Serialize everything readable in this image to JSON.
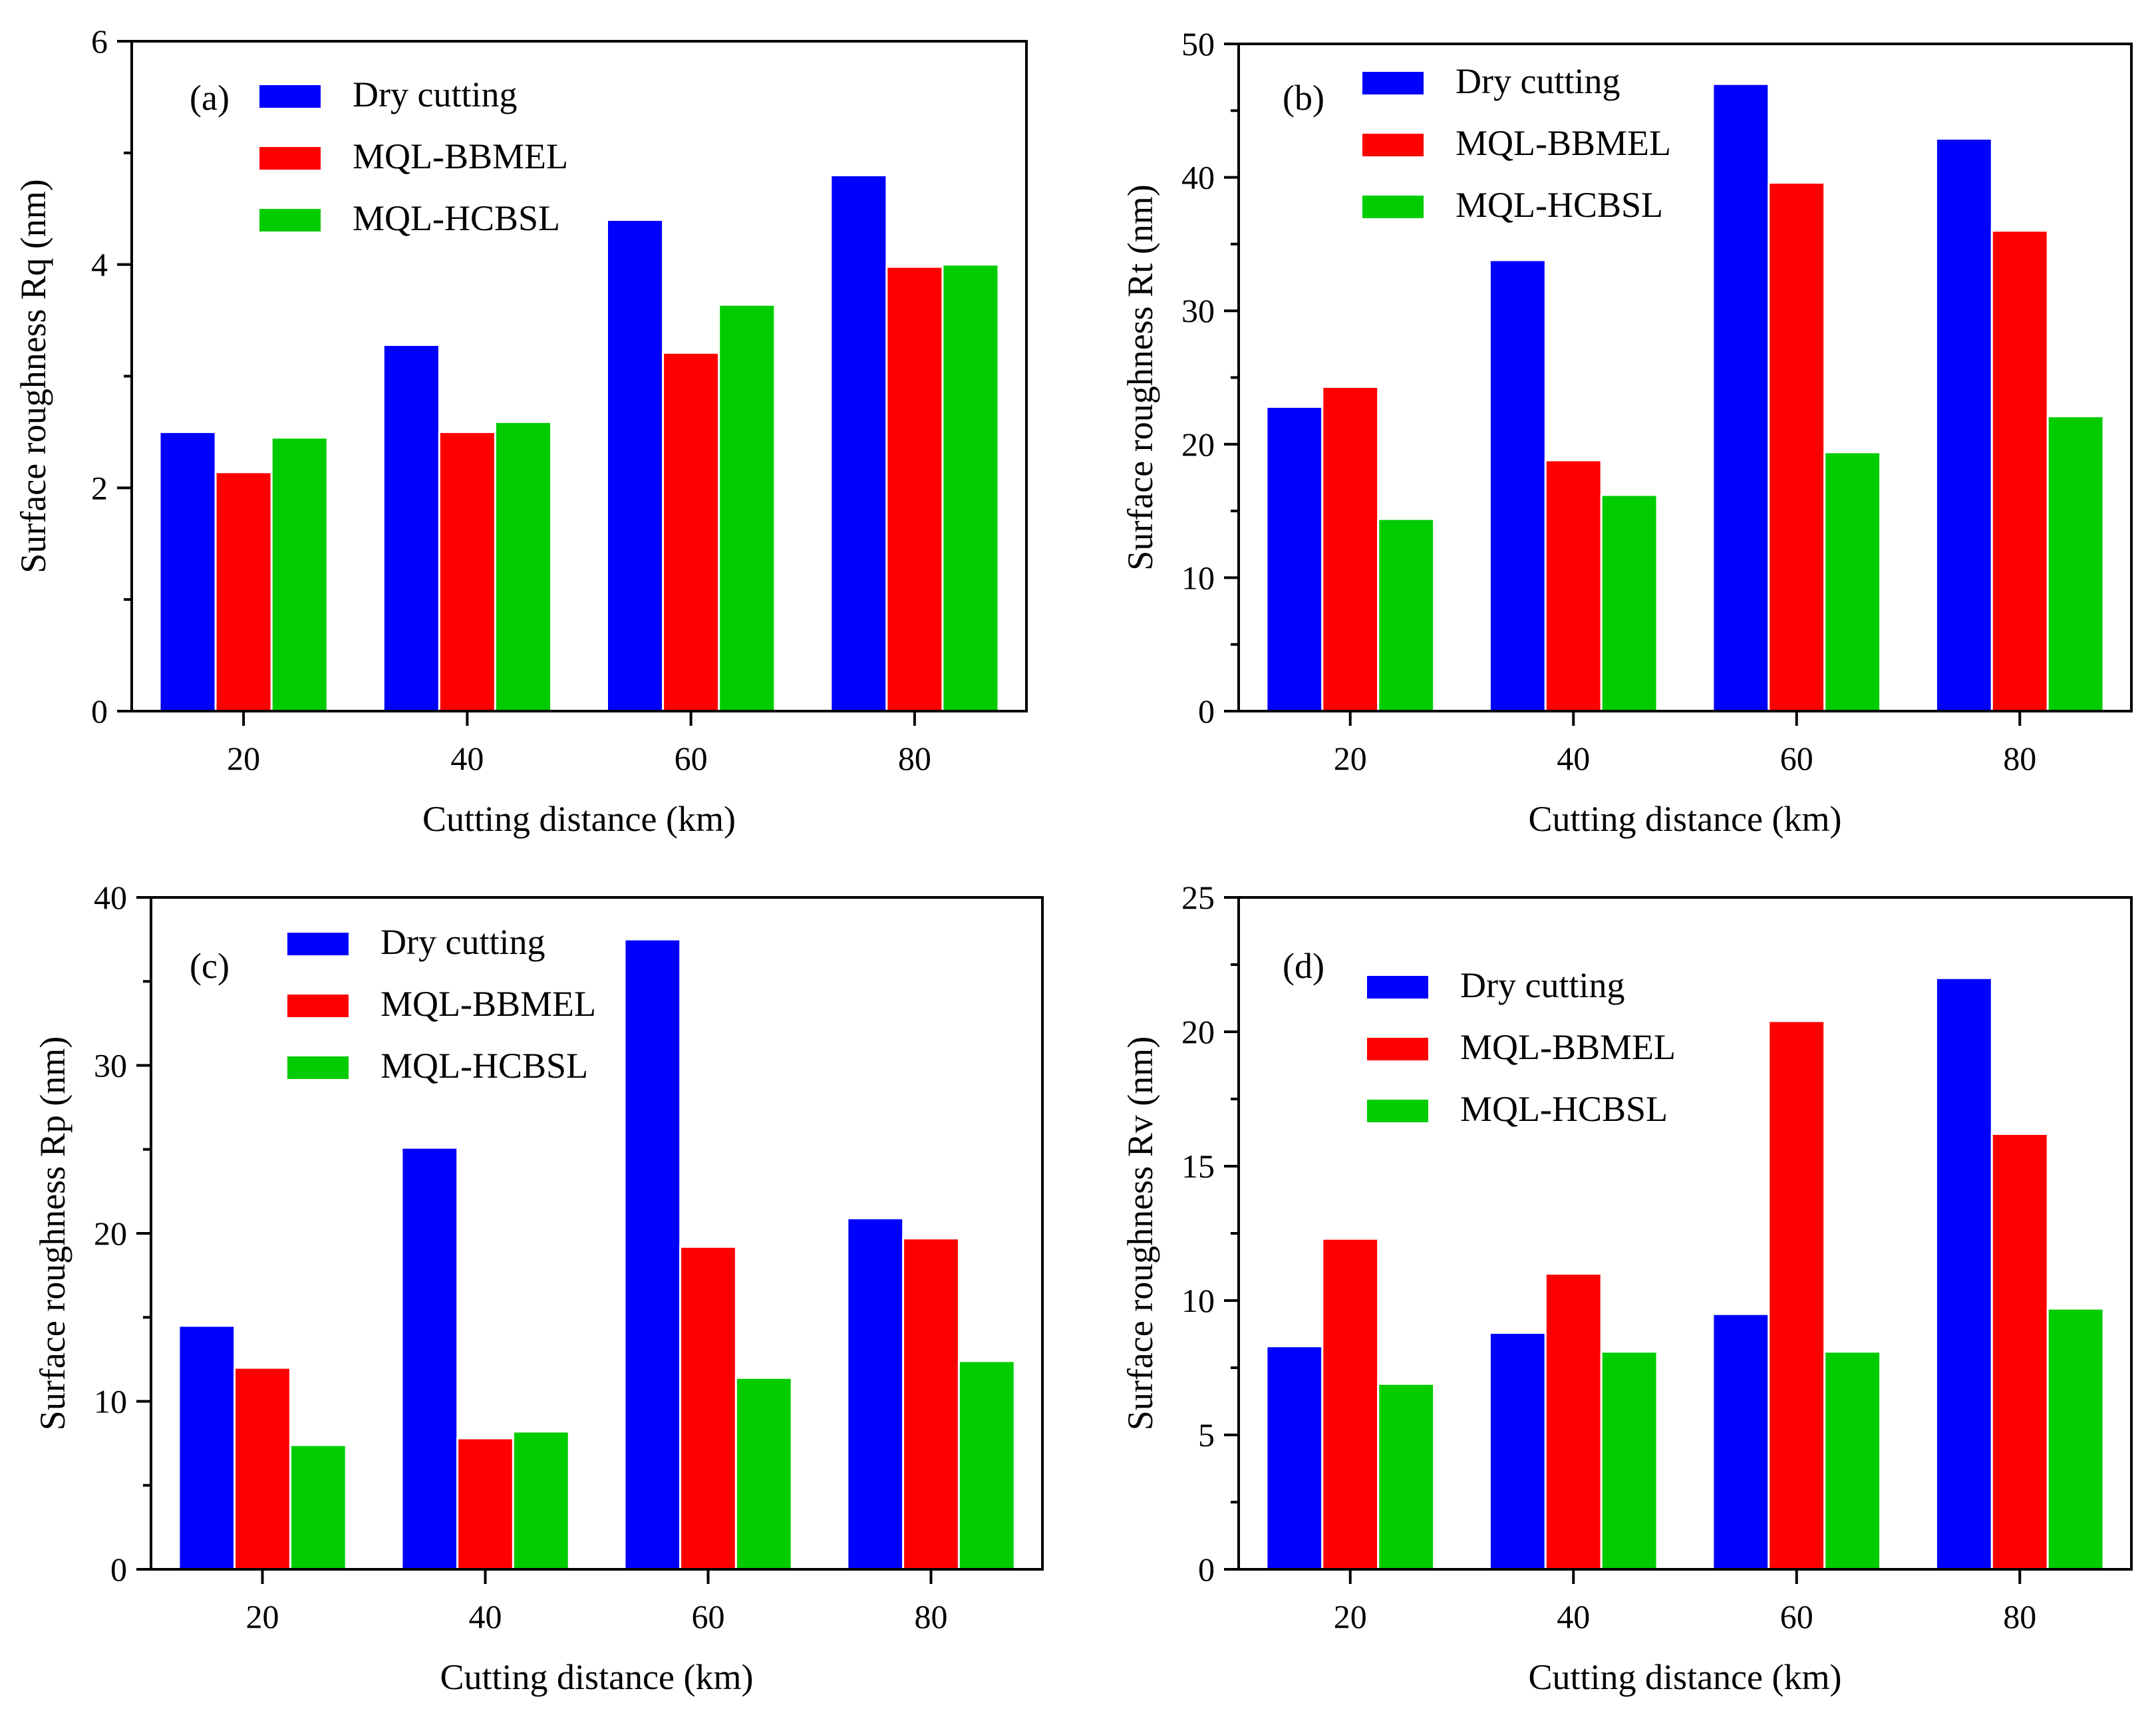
{
  "colors": {
    "dry": "#0000FF",
    "bbmel": "#FF0000",
    "hcbsl": "#00CC00",
    "axis": "#000000"
  },
  "chart_data": [
    {
      "type": "bar",
      "panel": "(a)",
      "categories": [
        "20",
        "40",
        "60",
        "80"
      ],
      "xlabel": "Cutting distance (km)",
      "ylabel": "Surface roughness Rq (nm)",
      "ylim": [
        0,
        6
      ],
      "yticks": [
        "0",
        "2",
        "4",
        "6"
      ],
      "yminor": 1,
      "legend_position": "top-left",
      "series": [
        {
          "name": "Dry cutting",
          "values": [
            2.5,
            3.28,
            4.4,
            4.8
          ]
        },
        {
          "name": "MQL-BBMEL",
          "values": [
            2.14,
            2.5,
            3.21,
            3.98
          ]
        },
        {
          "name": "MQL-HCBSL",
          "values": [
            2.45,
            2.59,
            3.64,
            4.0
          ]
        }
      ]
    },
    {
      "type": "bar",
      "panel": "(b)",
      "categories": [
        "20",
        "40",
        "60",
        "80"
      ],
      "xlabel": "Cutting distance (km)",
      "ylabel": "Surface roughness Rt (nm)",
      "ylim": [
        0,
        50
      ],
      "yticks": [
        "0",
        "10",
        "20",
        "30",
        "40",
        "50"
      ],
      "yminor": 5,
      "legend_position": "top-left",
      "series": [
        {
          "name": "Dry cutting",
          "values": [
            22.8,
            33.8,
            47.0,
            42.9
          ]
        },
        {
          "name": "MQL-BBMEL",
          "values": [
            24.3,
            18.8,
            39.6,
            36.0
          ]
        },
        {
          "name": "MQL-HCBSL",
          "values": [
            14.4,
            16.2,
            19.4,
            22.1
          ]
        }
      ]
    },
    {
      "type": "bar",
      "panel": "(c)",
      "categories": [
        "20",
        "40",
        "60",
        "80"
      ],
      "xlabel": "Cutting distance (km)",
      "ylabel": "Surface roughness Rp (nm)",
      "ylim": [
        0,
        40
      ],
      "yticks": [
        "0",
        "10",
        "20",
        "30",
        "40"
      ],
      "yminor": 5,
      "legend_position": "top-left",
      "series": [
        {
          "name": "Dry cutting",
          "values": [
            14.5,
            25.1,
            37.5,
            20.9
          ]
        },
        {
          "name": "MQL-BBMEL",
          "values": [
            12.0,
            7.8,
            19.2,
            19.7
          ]
        },
        {
          "name": "MQL-HCBSL",
          "values": [
            7.4,
            8.2,
            11.4,
            12.4
          ]
        }
      ]
    },
    {
      "type": "bar",
      "panel": "(d)",
      "categories": [
        "20",
        "40",
        "60",
        "80"
      ],
      "xlabel": "Cutting distance (km)",
      "ylabel": "Surface roughness Rv (nm)",
      "ylim": [
        0,
        25
      ],
      "yticks": [
        "0",
        "5",
        "10",
        "15",
        "20",
        "25"
      ],
      "yminor": 2.5,
      "legend_position": "top-left",
      "series": [
        {
          "name": "Dry cutting",
          "values": [
            8.3,
            8.8,
            9.5,
            22.0
          ]
        },
        {
          "name": "MQL-BBMEL",
          "values": [
            12.3,
            11.0,
            20.4,
            16.2
          ]
        },
        {
          "name": "MQL-HCBSL",
          "values": [
            6.9,
            8.1,
            8.1,
            9.7
          ]
        }
      ]
    }
  ]
}
